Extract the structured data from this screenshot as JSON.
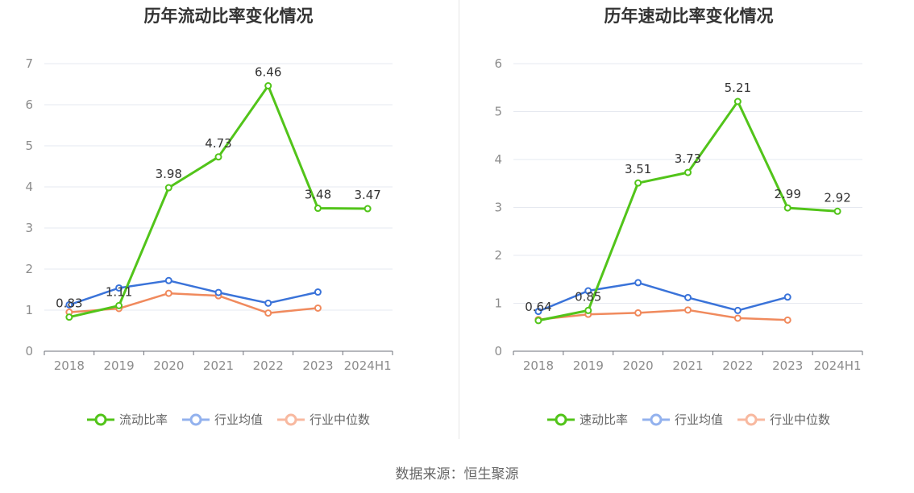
{
  "source_text": "数据来源：恒生聚源",
  "chart_data": [
    {
      "type": "line",
      "title": "历年流动比率变化情况",
      "categories": [
        "2018",
        "2019",
        "2020",
        "2021",
        "2022",
        "2023",
        "2024H1"
      ],
      "ylim": [
        0,
        7
      ],
      "yticks": [
        0,
        1,
        2,
        3,
        4,
        5,
        6,
        7
      ],
      "grid": true,
      "legend_position": "bottom",
      "series": [
        {
          "name": "流动比率",
          "color": "#52c41a",
          "values": [
            0.83,
            1.11,
            3.98,
            4.73,
            6.46,
            3.48,
            3.47
          ],
          "labels": [
            "0.83",
            "1.11",
            "3.98",
            "4.73",
            "6.46",
            "3.48",
            "3.47"
          ]
        },
        {
          "name": "行业均值",
          "color": "#3a73d9",
          "values": [
            1.13,
            1.54,
            1.72,
            1.43,
            1.17,
            1.44,
            null
          ]
        },
        {
          "name": "行业中位数",
          "color": "#f08a5d",
          "values": [
            0.95,
            1.04,
            1.41,
            1.35,
            0.93,
            1.05,
            null
          ]
        }
      ]
    },
    {
      "type": "line",
      "title": "历年速动比率变化情况",
      "categories": [
        "2018",
        "2019",
        "2020",
        "2021",
        "2022",
        "2023",
        "2024H1"
      ],
      "ylim": [
        0,
        6
      ],
      "yticks": [
        0,
        1,
        2,
        3,
        4,
        5,
        6
      ],
      "grid": true,
      "legend_position": "bottom",
      "series": [
        {
          "name": "速动比率",
          "color": "#52c41a",
          "values": [
            0.64,
            0.85,
            3.51,
            3.73,
            5.21,
            2.99,
            2.92
          ],
          "labels": [
            "0.64",
            "0.85",
            "3.51",
            "3.73",
            "5.21",
            "2.99",
            "2.92"
          ]
        },
        {
          "name": "行业均值",
          "color": "#3a73d9",
          "values": [
            0.83,
            1.26,
            1.43,
            1.12,
            0.85,
            1.13,
            null
          ]
        },
        {
          "name": "行业中位数",
          "color": "#f08a5d",
          "values": [
            0.66,
            0.77,
            0.8,
            0.86,
            0.69,
            0.65,
            null
          ]
        }
      ]
    }
  ]
}
